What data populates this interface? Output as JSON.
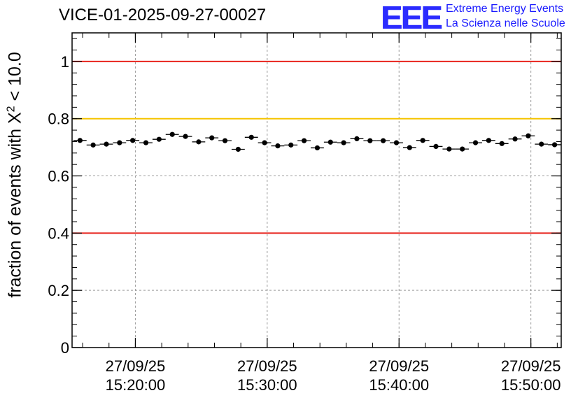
{
  "header": {
    "title": "VICE-01-2025-09-27-00027",
    "logo_mark": "EEE",
    "logo_line1": "Extreme Energy Events",
    "logo_line2": "La Scienza nelle Scuole"
  },
  "chart_data": {
    "type": "scatter",
    "title": "VICE-01-2025-09-27-00027",
    "xlabel": "",
    "ylabel_prefix": "fraction of events with ",
    "ylabel_symbol": "X",
    "ylabel_sup": "2",
    "ylabel_suffix": " < 10.0",
    "xlim_minutes": [
      15.2,
      52.3
    ],
    "ylim": [
      0,
      1.1
    ],
    "yticks": [
      0,
      0.2,
      0.4,
      0.6,
      0.8,
      1
    ],
    "ytick_labels": [
      "0",
      "0.2",
      "0.4",
      "0.6",
      "0.8",
      "1"
    ],
    "xticks_minutes": [
      20,
      30,
      40,
      50
    ],
    "xtick_dates": [
      "27/09/25",
      "27/09/25",
      "27/09/25",
      "27/09/25"
    ],
    "xtick_times": [
      "15:20:00",
      "15:30:00",
      "15:40:00",
      "15:50:00"
    ],
    "grid": true,
    "reference_lines": [
      {
        "value": 1.0,
        "color": "#e8231c"
      },
      {
        "value": 0.8,
        "color": "#f5c400"
      },
      {
        "value": 0.4,
        "color": "#e8231c"
      }
    ],
    "bin_width_minutes": 1,
    "x_minutes": [
      15.8,
      16.8,
      17.8,
      18.8,
      19.8,
      20.8,
      21.8,
      22.8,
      23.8,
      24.8,
      25.8,
      26.8,
      27.8,
      28.8,
      29.8,
      30.8,
      31.8,
      32.8,
      33.8,
      34.8,
      35.8,
      36.8,
      37.8,
      38.8,
      39.8,
      40.8,
      41.8,
      42.8,
      43.8,
      44.8,
      45.8,
      46.8,
      47.8,
      48.8,
      49.8,
      50.8,
      51.8
    ],
    "values": [
      0.724,
      0.708,
      0.711,
      0.716,
      0.724,
      0.716,
      0.728,
      0.745,
      0.738,
      0.719,
      0.733,
      0.723,
      0.693,
      0.735,
      0.716,
      0.705,
      0.708,
      0.723,
      0.698,
      0.718,
      0.716,
      0.73,
      0.723,
      0.723,
      0.716,
      0.699,
      0.724,
      0.703,
      0.694,
      0.694,
      0.716,
      0.724,
      0.713,
      0.729,
      0.74,
      0.711,
      0.709
    ],
    "errors": [
      0.008,
      0.008,
      0.008,
      0.008,
      0.008,
      0.008,
      0.008,
      0.008,
      0.008,
      0.008,
      0.008,
      0.008,
      0.008,
      0.008,
      0.008,
      0.008,
      0.008,
      0.008,
      0.008,
      0.008,
      0.008,
      0.008,
      0.008,
      0.008,
      0.008,
      0.008,
      0.008,
      0.008,
      0.008,
      0.008,
      0.008,
      0.008,
      0.008,
      0.008,
      0.008,
      0.008,
      0.008
    ],
    "marker_color": "#000000"
  }
}
